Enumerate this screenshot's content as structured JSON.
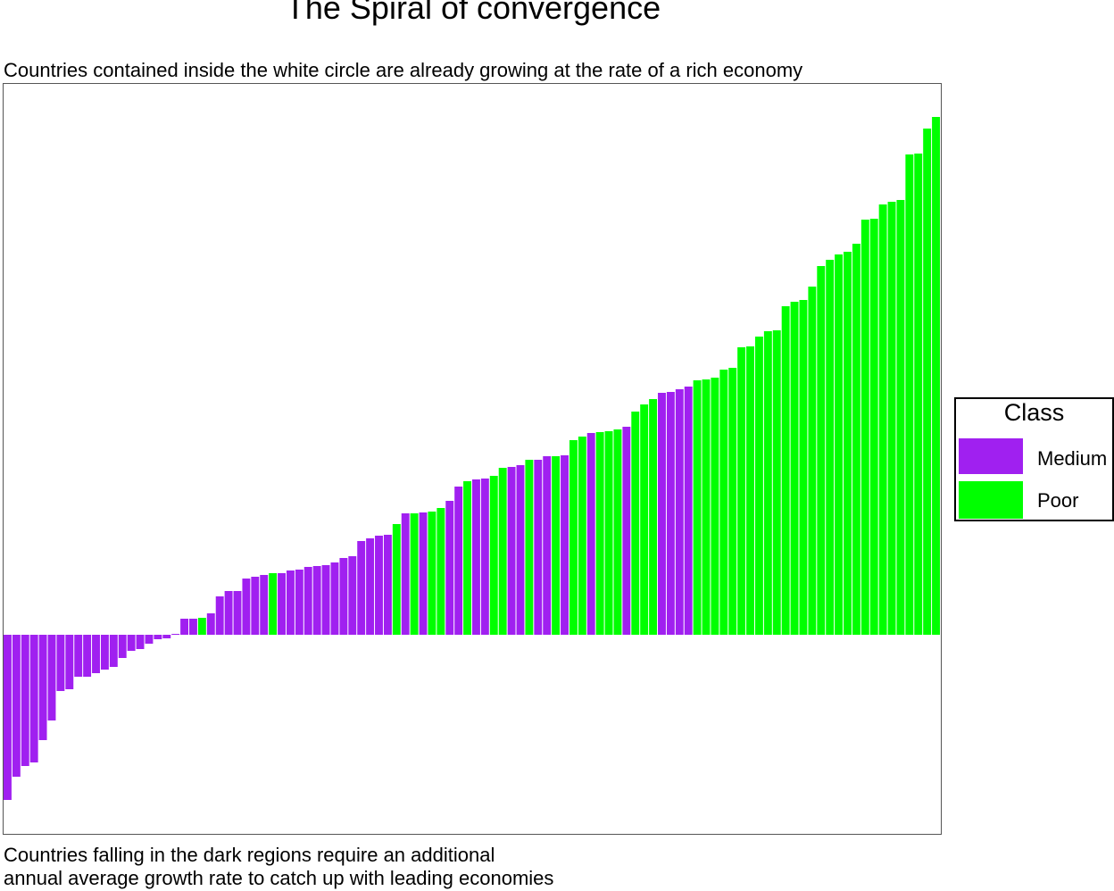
{
  "chart_data": {
    "type": "bar",
    "title": "The Spiral of convergence",
    "subtitle": "Countries contained inside the white circle are already growing at the rate of a rich economy",
    "caption": [
      "Countries falling in the dark regions require an additional",
      "annual average growth rate to catch up with leading economies"
    ],
    "xlabel": "",
    "ylabel": "",
    "axes_visible": false,
    "grid": false,
    "ylim": [
      -223,
      617
    ],
    "legend": {
      "title": "Class",
      "placement": "right",
      "entries": [
        {
          "name": "Medium",
          "color": "#A020F0"
        },
        {
          "name": "Poor",
          "color": "#00FF00"
        }
      ]
    },
    "colors": {
      "Medium": "#A020F0",
      "Poor": "#00FF00"
    },
    "values": [
      -185,
      -159,
      -147,
      -143,
      -118,
      -96,
      -63,
      -61,
      -47,
      -47,
      -43,
      -39,
      -36,
      -26,
      -18,
      -16,
      -10,
      -5,
      -4,
      1,
      18,
      18,
      19,
      24,
      43,
      49,
      49,
      63,
      65,
      67,
      69,
      69,
      72,
      73,
      76,
      77,
      78,
      81,
      86,
      88,
      105,
      108,
      111,
      112,
      124,
      136,
      136,
      137,
      138,
      142,
      150,
      166,
      172,
      174,
      175,
      178,
      187,
      188,
      190,
      196,
      196,
      200,
      200,
      201,
      218,
      222,
      226,
      227,
      228,
      230,
      233,
      250,
      258,
      264,
      271,
      272,
      275,
      278,
      285,
      286,
      288,
      297,
      299,
      322,
      323,
      334,
      340,
      341,
      368,
      373,
      375,
      390,
      413,
      420,
      426,
      429,
      438,
      465,
      466,
      482,
      485,
      487,
      538,
      539,
      567,
      580
    ],
    "classes": [
      "Medium",
      "Medium",
      "Medium",
      "Medium",
      "Medium",
      "Medium",
      "Medium",
      "Medium",
      "Medium",
      "Medium",
      "Medium",
      "Medium",
      "Medium",
      "Medium",
      "Medium",
      "Medium",
      "Medium",
      "Medium",
      "Medium",
      "Medium",
      "Medium",
      "Medium",
      "Poor",
      "Medium",
      "Medium",
      "Medium",
      "Medium",
      "Medium",
      "Medium",
      "Medium",
      "Poor",
      "Medium",
      "Medium",
      "Medium",
      "Medium",
      "Medium",
      "Medium",
      "Medium",
      "Medium",
      "Medium",
      "Medium",
      "Medium",
      "Medium",
      "Medium",
      "Poor",
      "Medium",
      "Poor",
      "Medium",
      "Poor",
      "Poor",
      "Medium",
      "Medium",
      "Poor",
      "Medium",
      "Medium",
      "Poor",
      "Poor",
      "Medium",
      "Medium",
      "Poor",
      "Medium",
      "Medium",
      "Poor",
      "Medium",
      "Poor",
      "Poor",
      "Medium",
      "Poor",
      "Poor",
      "Poor",
      "Medium",
      "Poor",
      "Poor",
      "Poor",
      "Medium",
      "Medium",
      "Medium",
      "Medium",
      "Poor",
      "Poor",
      "Poor",
      "Poor",
      "Poor",
      "Poor",
      "Poor",
      "Poor",
      "Poor",
      "Poor",
      "Poor",
      "Poor",
      "Poor",
      "Poor",
      "Poor",
      "Poor",
      "Poor",
      "Poor",
      "Poor",
      "Poor",
      "Poor",
      "Poor",
      "Poor",
      "Poor",
      "Poor",
      "Poor",
      "Poor",
      "Poor"
    ]
  }
}
